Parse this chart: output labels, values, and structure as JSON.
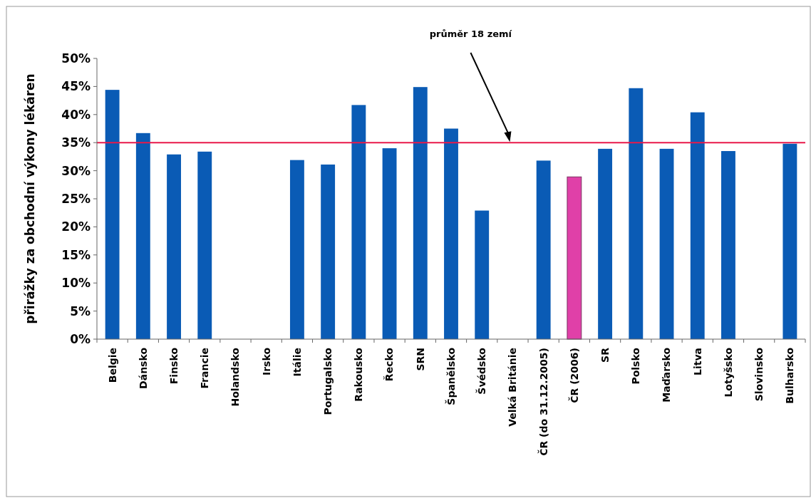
{
  "chart_data": {
    "type": "bar",
    "ylabel": "přirážky za obchodní výkony lékáren",
    "categories": [
      "Belgie",
      "Dánsko",
      "Finsko",
      "Francie",
      "Holandsko",
      "Irsko",
      "Itálie",
      "Portugalsko",
      "Rakousko",
      "Řecko",
      "SRN",
      "Španělsko",
      "Švédsko",
      "Velká Británie",
      "ČR (do 31.12.2005)",
      "ČR (2006)",
      "SR",
      "Polsko",
      "Maďarsko",
      "Litva",
      "Lotyšsko",
      "Slovinsko",
      "Bulharsko"
    ],
    "values": [
      44.4,
      36.7,
      32.9,
      33.4,
      null,
      null,
      31.9,
      31.1,
      41.7,
      34.0,
      44.9,
      37.5,
      22.9,
      null,
      31.8,
      28.9,
      33.9,
      44.7,
      33.9,
      40.4,
      33.5,
      null,
      34.8
    ],
    "colors": [
      "#0a5bb5",
      "#0a5bb5",
      "#0a5bb5",
      "#0a5bb5",
      null,
      null,
      "#0a5bb5",
      "#0a5bb5",
      "#0a5bb5",
      "#0a5bb5",
      "#0a5bb5",
      "#0a5bb5",
      "#0a5bb5",
      null,
      "#0a5bb5",
      "#e040a8",
      "#0a5bb5",
      "#0a5bb5",
      "#0a5bb5",
      "#0a5bb5",
      "#0a5bb5",
      null,
      "#0a5bb5"
    ],
    "ylim": [
      0,
      50
    ],
    "yticks": [
      {
        "value": 0,
        "label": "0%"
      },
      {
        "value": 5,
        "label": "5%"
      },
      {
        "value": 10,
        "label": "10%"
      },
      {
        "value": 15,
        "label": "15%"
      },
      {
        "value": 20,
        "label": "20%"
      },
      {
        "value": 25,
        "label": "25%"
      },
      {
        "value": 30,
        "label": "30%"
      },
      {
        "value": 35,
        "label": "35%"
      },
      {
        "value": 40,
        "label": "40%"
      },
      {
        "value": 45,
        "label": "45%"
      },
      {
        "value": 50,
        "label": "50%"
      }
    ],
    "ref_lines": [
      {
        "axis": "y",
        "value": 35,
        "color": "#e8194a"
      }
    ],
    "annotations": [
      "průměr 18 zemí"
    ],
    "grid": false
  }
}
